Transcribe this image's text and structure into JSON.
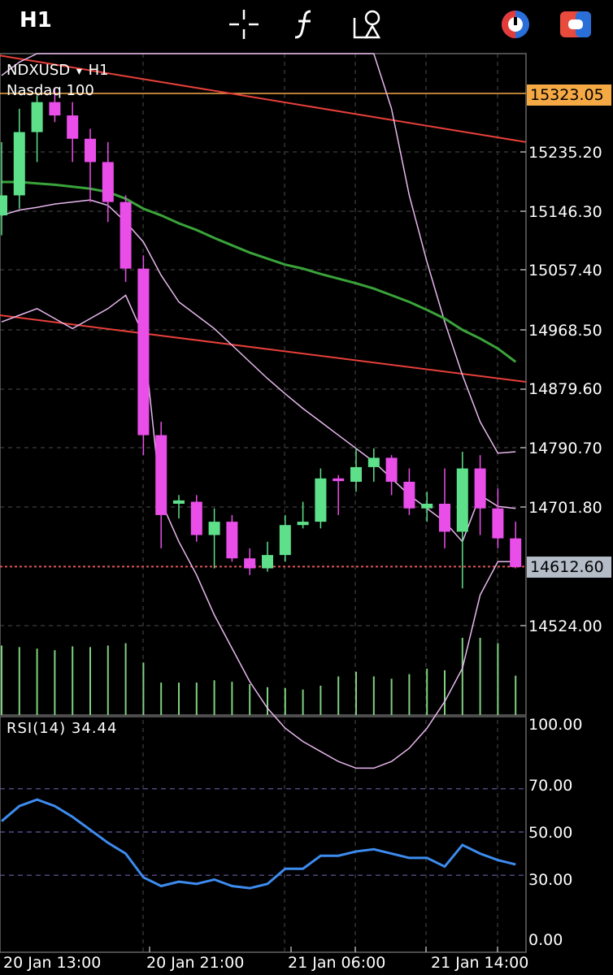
{
  "toolbar": {
    "timeframe": "H1",
    "icons": [
      "crosshair-icon",
      "function-icon",
      "objects-icon",
      "timer-icon",
      "toggle-icon"
    ]
  },
  "symbol": {
    "ticker": "NDXUSD",
    "arrow": "▾",
    "timeframe": "H1",
    "name": "Nasdaq 100"
  },
  "price_axis": [
    "15235.20",
    "15146.30",
    "15057.40",
    "14968.50",
    "14879.60",
    "14790.70",
    "14701.80",
    "14524.00"
  ],
  "tags": {
    "ask": "15323.05",
    "ask_color": "#f5a945",
    "bid": "14612.60",
    "bid_color": "#b4bcc8"
  },
  "rsi": {
    "label": "RSI(14) 34.44",
    "levels": [
      "100.00",
      "70.00",
      "50.00",
      "30.00",
      "0.00"
    ]
  },
  "time_axis": [
    "20 Jan 13:00",
    "20 Jan 21:00",
    "21 Jan 06:00",
    "21 Jan 14:00"
  ],
  "colors": {
    "bull": "#5ee08b",
    "bear": "#e94ee9",
    "ma": "#3aa33a",
    "bands": "#e8b8ee",
    "trend": "#e8403a",
    "rsi_line": "#3d8cf0",
    "grid": "#333333",
    "volume": "#7fd07f"
  },
  "chart_data": {
    "type": "candlestick",
    "ylim": [
      14450,
      15380
    ],
    "candles": [
      {
        "o": 15140,
        "h": 15250,
        "l": 15110,
        "c": 15170
      },
      {
        "o": 15170,
        "h": 15300,
        "l": 15150,
        "c": 15265
      },
      {
        "o": 15265,
        "h": 15320,
        "l": 15220,
        "c": 15310
      },
      {
        "o": 15310,
        "h": 15330,
        "l": 15280,
        "c": 15290
      },
      {
        "o": 15290,
        "h": 15310,
        "l": 15220,
        "c": 15255
      },
      {
        "o": 15255,
        "h": 15270,
        "l": 15160,
        "c": 15220
      },
      {
        "o": 15220,
        "h": 15250,
        "l": 15130,
        "c": 15160
      },
      {
        "o": 15160,
        "h": 15170,
        "l": 15040,
        "c": 15060
      },
      {
        "o": 15060,
        "h": 15080,
        "l": 14780,
        "c": 14810
      },
      {
        "o": 14810,
        "h": 14830,
        "l": 14640,
        "c": 14690
      },
      {
        "o": 14707,
        "h": 14720,
        "l": 14685,
        "c": 14712
      },
      {
        "o": 14710,
        "h": 14720,
        "l": 14650,
        "c": 14660
      },
      {
        "o": 14660,
        "h": 14700,
        "l": 14610,
        "c": 14680
      },
      {
        "o": 14680,
        "h": 14690,
        "l": 14620,
        "c": 14625
      },
      {
        "o": 14625,
        "h": 14640,
        "l": 14600,
        "c": 14610
      },
      {
        "o": 14610,
        "h": 14650,
        "l": 14605,
        "c": 14630
      },
      {
        "o": 14630,
        "h": 14690,
        "l": 14620,
        "c": 14675
      },
      {
        "o": 14675,
        "h": 14710,
        "l": 14670,
        "c": 14680
      },
      {
        "o": 14680,
        "h": 14760,
        "l": 14670,
        "c": 14745
      },
      {
        "o": 14745,
        "h": 14750,
        "l": 14690,
        "c": 14741
      },
      {
        "o": 14740,
        "h": 14790,
        "l": 14725,
        "c": 14762
      },
      {
        "o": 14762,
        "h": 14790,
        "l": 14740,
        "c": 14776
      },
      {
        "o": 14776,
        "h": 14780,
        "l": 14720,
        "c": 14740
      },
      {
        "o": 14740,
        "h": 14760,
        "l": 14690,
        "c": 14700
      },
      {
        "o": 14700,
        "h": 14725,
        "l": 14680,
        "c": 14707
      },
      {
        "o": 14707,
        "h": 14760,
        "l": 14640,
        "c": 14665
      },
      {
        "o": 14665,
        "h": 14785,
        "l": 14580,
        "c": 14760
      },
      {
        "o": 14760,
        "h": 14780,
        "l": 14660,
        "c": 14700
      },
      {
        "o": 14700,
        "h": 14730,
        "l": 14640,
        "c": 14655
      },
      {
        "o": 14655,
        "h": 14680,
        "l": 14610,
        "c": 14612
      }
    ],
    "volume": [
      0.9,
      0.88,
      0.86,
      0.84,
      0.89,
      0.88,
      0.9,
      0.93,
      0.68,
      0.42,
      0.42,
      0.42,
      0.45,
      0.43,
      0.4,
      0.36,
      0.35,
      0.33,
      0.38,
      0.5,
      0.56,
      0.5,
      0.47,
      0.53,
      0.6,
      0.58,
      1.0,
      1.0,
      0.93,
      0.51
    ],
    "rsi": [
      55,
      62,
      65,
      62,
      57,
      51,
      45,
      40,
      29,
      25,
      27,
      26,
      28,
      25,
      24,
      26,
      33,
      33,
      39,
      39,
      41,
      42,
      40,
      38,
      38,
      34,
      44,
      40,
      37,
      35
    ],
    "ma": [
      15190,
      15190,
      15188,
      15186,
      15183,
      15180,
      15175,
      15165,
      15150,
      15140,
      15128,
      15118,
      15106,
      15095,
      15084,
      15075,
      15066,
      15060,
      15052,
      15045,
      15038,
      15030,
      15020,
      15010,
      14998,
      14985,
      14968,
      14955,
      14940,
      14920
    ],
    "bands_upper": [
      15350,
      15370,
      15390,
      15390,
      15390,
      15390,
      15390,
      15390,
      15390,
      15390,
      15390,
      15390,
      15390,
      15390,
      15390,
      15390,
      15390,
      15390,
      15390,
      15390,
      15390,
      15390,
      15300,
      15170,
      15070,
      14980,
      14900,
      14830,
      14783,
      14785
    ],
    "bands_middle": [
      15140,
      15148,
      15152,
      15157,
      15160,
      15163,
      15155,
      15130,
      15100,
      15050,
      15010,
      14990,
      14970,
      14945,
      14920,
      14895,
      14872,
      14850,
      14830,
      14810,
      14790,
      14770,
      14745,
      14720,
      14700,
      14680,
      14650,
      14720,
      14703,
      14700
    ],
    "bands_lower": [
      14980,
      14990,
      15000,
      14985,
      14970,
      14985,
      15000,
      15020,
      14960,
      14710,
      14650,
      14600,
      14540,
      14490,
      14440,
      14400,
      14370,
      14350,
      14335,
      14320,
      14310,
      14310,
      14320,
      14340,
      14370,
      14410,
      14460,
      14570,
      14620,
      14620
    ],
    "trendlines": [
      {
        "y_start": 15380,
        "y_end": 15250
      },
      {
        "y_start": 14990,
        "y_end": 14890
      }
    ]
  }
}
